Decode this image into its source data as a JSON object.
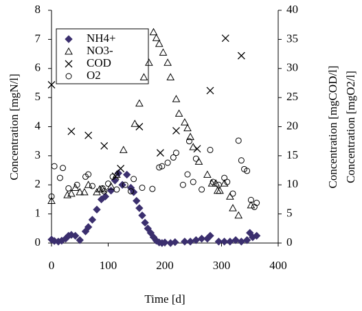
{
  "chart_data": {
    "type": "scatter",
    "x_label": "Time [d]",
    "y_label": "Concentration [mgN/l]",
    "y2_labels": [
      "Concentration [mgCOD/l]",
      "Concentration [mgO2/l]"
    ],
    "xlim": [
      0,
      400
    ],
    "xticks": [
      0,
      100,
      200,
      300,
      400
    ],
    "ylim": [
      0,
      8
    ],
    "yticks": [
      0,
      1,
      2,
      3,
      4,
      5,
      6,
      7,
      8
    ],
    "y2lim": [
      0,
      40
    ],
    "y2ticks": [
      0,
      5,
      10,
      15,
      20,
      25,
      30,
      35,
      40
    ],
    "legend": "top-left",
    "series": [
      {
        "name": "NH4+",
        "marker": "diamond",
        "color": "#3b2f6e",
        "x": [
          0,
          5,
          12,
          18,
          25,
          30,
          35,
          42,
          50,
          60,
          65,
          72,
          80,
          88,
          95,
          105,
          112,
          118,
          125,
          133,
          140,
          145,
          150,
          155,
          160,
          165,
          170,
          175,
          180,
          185,
          190,
          195,
          200,
          210,
          218,
          235,
          245,
          255,
          265,
          275,
          280,
          295,
          305,
          315,
          325,
          335,
          345,
          350,
          355,
          362
        ],
        "values": [
          0.12,
          0.07,
          0.05,
          0.08,
          0.15,
          0.25,
          0.28,
          0.25,
          0.1,
          0.4,
          0.55,
          0.8,
          1.15,
          1.5,
          1.6,
          1.8,
          2.15,
          2.4,
          2.0,
          2.35,
          1.9,
          1.75,
          1.45,
          1.2,
          0.95,
          0.7,
          0.5,
          0.35,
          0.2,
          0.08,
          0.02,
          0.0,
          0.02,
          0.0,
          0.03,
          0.05,
          0.05,
          0.1,
          0.15,
          0.15,
          0.25,
          0.05,
          0.05,
          0.05,
          0.1,
          0.05,
          0.1,
          0.35,
          0.2,
          0.25
        ]
      },
      {
        "name": "NO3-",
        "marker": "triangle",
        "color": "#000000",
        "x": [
          0,
          28,
          35,
          42,
          50,
          58,
          65,
          80,
          85,
          90,
          105,
          115,
          127,
          147,
          155,
          163,
          172,
          180,
          185,
          190,
          197,
          205,
          210,
          220,
          225,
          235,
          240,
          245,
          250,
          260,
          275,
          283,
          290,
          293,
          297,
          305,
          315,
          320,
          330,
          352
        ],
        "values": [
          1.45,
          1.65,
          1.7,
          1.9,
          1.75,
          1.75,
          2.0,
          1.75,
          1.85,
          1.85,
          1.95,
          2.35,
          3.2,
          4.1,
          4.8,
          5.7,
          6.2,
          7.25,
          7.05,
          6.85,
          6.55,
          6.2,
          5.7,
          4.95,
          4.45,
          4.15,
          3.95,
          3.65,
          3.3,
          2.8,
          2.35,
          2.05,
          2.05,
          1.8,
          1.8,
          2.05,
          1.6,
          1.2,
          0.95,
          1.3
        ]
      },
      {
        "name": "COD",
        "marker": "cross",
        "color": "#000000",
        "axis": "y2",
        "x": [
          0,
          35,
          65,
          93,
          113,
          122,
          155,
          192,
          220,
          257,
          280,
          307,
          335
        ],
        "values": [
          27.2,
          19.2,
          18.5,
          16.7,
          11.5,
          12.8,
          20,
          15.5,
          19.3,
          16.2,
          26.2,
          35.2,
          32.2
        ]
      },
      {
        "name": "O2",
        "marker": "circle",
        "color": "#000000",
        "axis": "y2",
        "x": [
          0,
          5,
          15,
          20,
          30,
          45,
          60,
          65,
          72,
          90,
          93,
          100,
          108,
          115,
          130,
          140,
          145,
          160,
          178,
          190,
          195,
          205,
          215,
          220,
          232,
          240,
          243,
          250,
          255,
          265,
          280,
          285,
          295,
          305,
          310,
          320,
          330,
          335,
          340,
          345,
          352,
          358,
          362
        ],
        "values": [
          8,
          13.2,
          11.2,
          12.9,
          9.4,
          10,
          11.4,
          11.8,
          9.8,
          9.4,
          8.9,
          10.2,
          11.4,
          9.2,
          10,
          8.9,
          11,
          9.5,
          9.3,
          13,
          13.2,
          13.8,
          14.7,
          15.5,
          10,
          11.8,
          17.5,
          10.5,
          14.5,
          9.2,
          16,
          10.5,
          10,
          11.2,
          10.5,
          8.5,
          17.6,
          14.2,
          12.7,
          12.4,
          7.4,
          6.2,
          6.9
        ]
      }
    ]
  }
}
